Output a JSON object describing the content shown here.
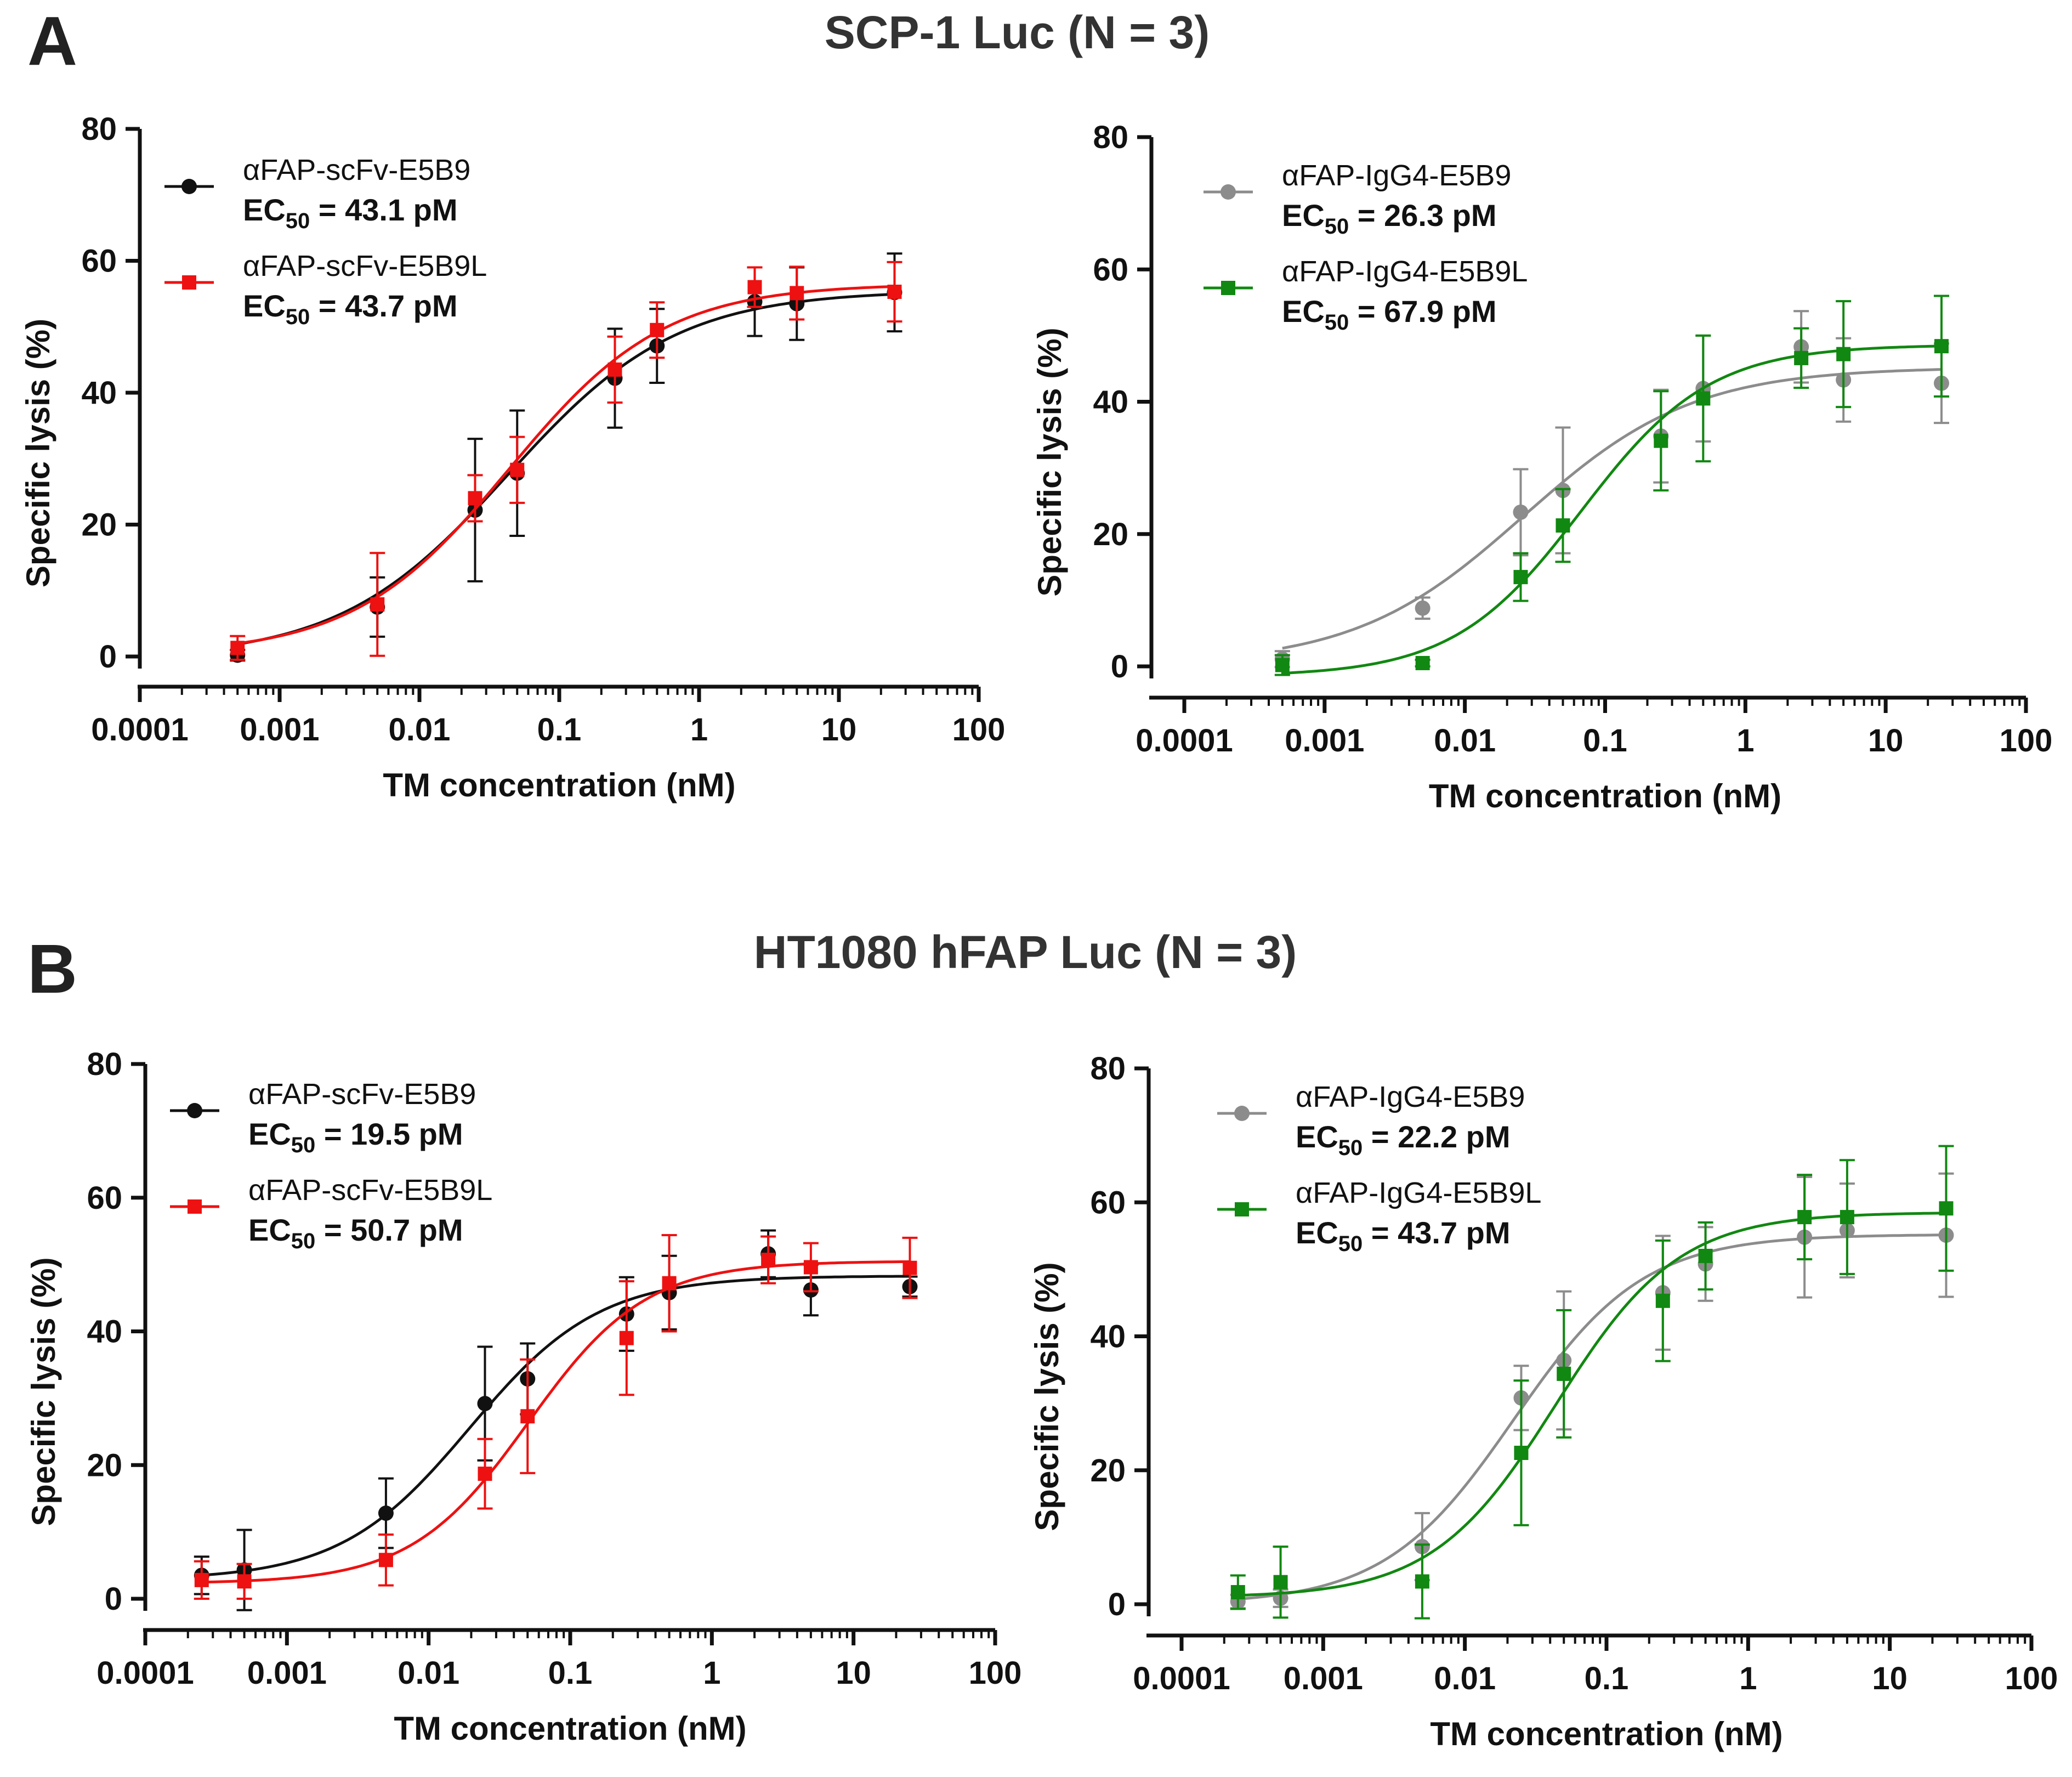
{
  "panels": [
    {
      "letter": "A",
      "title": "SCP-1 Luc (N = 3)"
    },
    {
      "letter": "B",
      "title": "HT1080 hFAP Luc (N = 3)"
    }
  ],
  "chart_data": [
    {
      "type": "scatter",
      "panel": "A",
      "xlabel": "TM concentration (nM)",
      "ylabel": "Specific lysis (%)",
      "xscale": "log",
      "xlim": [
        0.0001,
        100
      ],
      "ylim": [
        0,
        80
      ],
      "xticks": [
        "0.0001",
        "0.001",
        "0.01",
        "0.1",
        "1",
        "10",
        "100"
      ],
      "yticks": [
        "0",
        "20",
        "40",
        "60",
        "80"
      ],
      "legend_position": "top-left",
      "series": [
        {
          "name": "αFAP-scFv-E5B9",
          "ec50_prefix": "EC",
          "ec50_sub": "50",
          "ec50_value": " = 43.1 pM",
          "color": "#111111",
          "marker": "circle",
          "x": [
            0.0005,
            0.005,
            0.025,
            0.05,
            0.25,
            0.5,
            2.5,
            5,
            25
          ],
          "y": [
            0.2,
            7.5,
            22.2,
            27.8,
            42.2,
            47.1,
            53.8,
            53.5,
            55.2
          ],
          "err": [
            0.8,
            4.5,
            10.8,
            9.5,
            7.5,
            5.6,
            5.2,
            5.5,
            5.9
          ],
          "fit": {
            "bottom": -0.3,
            "top": 55.5,
            "ec50": 0.0431,
            "hill": 0.72
          }
        },
        {
          "name": "αFAP-scFv-E5B9L",
          "ec50_prefix": "EC",
          "ec50_sub": "50",
          "ec50_value": " = 43.7 pM",
          "color": "#ee1111",
          "marker": "square",
          "x": [
            0.0005,
            0.005,
            0.025,
            0.05,
            0.25,
            0.5,
            2.5,
            5,
            25
          ],
          "y": [
            1.3,
            7.9,
            24.0,
            28.3,
            43.5,
            49.5,
            56.0,
            55.1,
            55.3
          ],
          "err": [
            1.8,
            7.8,
            3.5,
            5.0,
            5.0,
            4.2,
            3.0,
            4.0,
            4.5
          ],
          "fit": {
            "bottom": 0.3,
            "top": 56.5,
            "ec50": 0.0437,
            "hill": 0.78
          }
        }
      ]
    },
    {
      "type": "scatter",
      "panel": "A",
      "xlabel": "TM concentration (nM)",
      "ylabel": "Specific lysis (%)",
      "xscale": "log",
      "xlim": [
        0.0001,
        100
      ],
      "ylim": [
        0,
        80
      ],
      "xticks": [
        "0.0001",
        "0.001",
        "0.01",
        "0.1",
        "1",
        "10",
        "100"
      ],
      "yticks": [
        "0",
        "20",
        "40",
        "60",
        "80"
      ],
      "legend_position": "top-left",
      "series": [
        {
          "name": "αFAP-IgG4-E5B9",
          "ec50_prefix": "EC",
          "ec50_sub": "50",
          "ec50_value": " = 26.3 pM",
          "color": "#8c8c8c",
          "marker": "circle",
          "x": [
            0.0005,
            0.005,
            0.025,
            0.05,
            0.25,
            0.5,
            2.5,
            5,
            25
          ],
          "y": [
            1.1,
            8.8,
            23.3,
            26.6,
            34.8,
            42.0,
            48.3,
            43.3,
            42.8
          ],
          "err": [
            1.2,
            1.6,
            6.5,
            9.5,
            7.0,
            8.0,
            5.4,
            6.3,
            6.0
          ],
          "fit": {
            "bottom": 0.3,
            "top": 45.2,
            "ec50": 0.0263,
            "hill": 0.72
          }
        },
        {
          "name": "αFAP-IgG4-E5B9L",
          "ec50_prefix": "EC",
          "ec50_sub": "50",
          "ec50_value": " = 67.9 pM",
          "color": "#118811",
          "marker": "square",
          "x": [
            0.0005,
            0.005,
            0.025,
            0.05,
            0.25,
            0.5,
            2.5,
            5,
            25
          ],
          "y": [
            0.2,
            0.5,
            13.5,
            21.3,
            34.1,
            40.5,
            46.6,
            47.2,
            48.4
          ],
          "err": [
            1.5,
            0.5,
            3.6,
            5.5,
            7.5,
            9.5,
            4.5,
            8.0,
            7.6
          ],
          "fit": {
            "bottom": -1.5,
            "top": 48.6,
            "ec50": 0.0679,
            "hill": 0.95
          }
        }
      ]
    },
    {
      "type": "scatter",
      "panel": "B",
      "xlabel": "TM concentration (nM)",
      "ylabel": "Specific lysis (%)",
      "xscale": "log",
      "xlim": [
        0.0001,
        100
      ],
      "ylim": [
        0,
        80
      ],
      "xticks": [
        "0.0001",
        "0.001",
        "0.01",
        "0.1",
        "1",
        "10",
        "100"
      ],
      "yticks": [
        "0",
        "20",
        "40",
        "60",
        "80"
      ],
      "legend_position": "top-left",
      "series": [
        {
          "name": "αFAP-scFv-E5B9",
          "ec50_prefix": "EC",
          "ec50_sub": "50",
          "ec50_value": " = 19.5 pM",
          "color": "#111111",
          "marker": "circle",
          "x": [
            0.00025,
            0.0005,
            0.005,
            0.025,
            0.05,
            0.25,
            0.5,
            2.5,
            5,
            25
          ],
          "y": [
            3.5,
            4.3,
            12.8,
            29.2,
            32.9,
            42.6,
            45.8,
            51.6,
            46.2,
            46.7
          ],
          "err": [
            2.8,
            6.0,
            5.2,
            8.5,
            5.3,
            5.5,
            5.5,
            3.5,
            3.8,
            1.5
          ],
          "fit": {
            "bottom": 2.8,
            "top": 48.3,
            "ec50": 0.0195,
            "hill": 0.95
          }
        },
        {
          "name": "αFAP-scFv-E5B9L",
          "ec50_prefix": "EC",
          "ec50_sub": "",
          "ec50_value": "",
          "ec50_full": "EC50 =  50.7 pM",
          "color": "#ee1111",
          "marker": "square",
          "x": [
            0.00025,
            0.0005,
            0.005,
            0.025,
            0.05,
            0.25,
            0.5,
            2.5,
            5,
            25
          ],
          "y": [
            2.8,
            2.6,
            5.8,
            18.7,
            27.3,
            39.0,
            47.2,
            50.7,
            49.6,
            49.5
          ],
          "err": [
            2.8,
            2.6,
            3.8,
            5.2,
            8.5,
            8.5,
            7.2,
            3.5,
            3.6,
            4.5
          ],
          "fit": {
            "bottom": 2.3,
            "top": 50.5,
            "ec50": 0.0507,
            "hill": 1.05
          }
        }
      ]
    },
    {
      "type": "scatter",
      "panel": "B",
      "xlabel": "TM concentration (nM)",
      "ylabel": "Specific lysis (%)",
      "xscale": "log",
      "xlim": [
        0.0001,
        100
      ],
      "ylim": [
        0,
        80
      ],
      "xticks": [
        "0.0001",
        "0.001",
        "0.01",
        "0.1",
        "1",
        "10",
        "100"
      ],
      "yticks": [
        "0",
        "20",
        "40",
        "60",
        "80"
      ],
      "legend_position": "top-left",
      "series": [
        {
          "name": "αFAP-IgG4-E5B9",
          "ec50_prefix": "EC",
          "ec50_sub": "50",
          "ec50_value": " = 22.2 pM",
          "color": "#8c8c8c",
          "marker": "circle",
          "x": [
            0.00025,
            0.0005,
            0.005,
            0.025,
            0.05,
            0.25,
            0.5,
            2.5,
            5,
            25
          ],
          "y": [
            0.4,
            0.9,
            8.6,
            30.8,
            36.4,
            46.5,
            50.8,
            54.8,
            55.8,
            55.1
          ],
          "err": [
            1.0,
            1.3,
            5.0,
            4.8,
            10.3,
            8.5,
            5.5,
            9.0,
            7.0,
            9.2
          ],
          "fit": {
            "bottom": 0.0,
            "top": 55.2,
            "ec50": 0.0222,
            "hill": 0.95
          }
        },
        {
          "name": "αFAP-IgG4-E5B9L",
          "ec50_prefix": "EC",
          "ec50_sub": "50",
          "ec50_value": " = 43.7 pM",
          "color": "#118811",
          "marker": "square",
          "x": [
            0.00025,
            0.0005,
            0.005,
            0.025,
            0.05,
            0.25,
            0.5,
            2.5,
            5,
            25
          ],
          "y": [
            1.8,
            3.3,
            3.4,
            22.6,
            34.4,
            45.3,
            52.0,
            57.8,
            57.8,
            59.1
          ],
          "err": [
            2.5,
            5.3,
            5.5,
            10.8,
            9.5,
            9.0,
            5.0,
            6.3,
            8.5,
            9.3
          ],
          "fit": {
            "bottom": 1.0,
            "top": 58.5,
            "ec50": 0.0437,
            "hill": 1.0
          }
        }
      ]
    }
  ]
}
